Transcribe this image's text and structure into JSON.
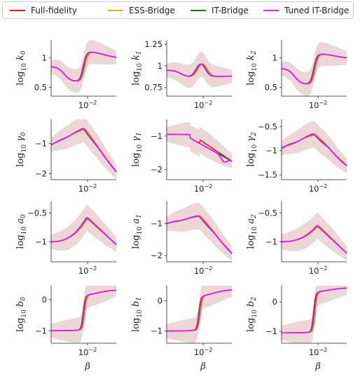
{
  "legend": [
    {
      "name": "Full-fidelity",
      "color": "#e8141c"
    },
    {
      "name": "ESS-Bridge",
      "color": "#f5a623"
    },
    {
      "name": "IT-Bridge",
      "color": "#1e6b1e"
    },
    {
      "name": "Tuned IT-Bridge",
      "color": "#e81ce0"
    }
  ],
  "band_color": "#c98a8e",
  "chart_data": [
    {
      "type": "line",
      "ylabel": "log10 k0",
      "xtick": "10^-2",
      "xlabel": "",
      "yticks": [
        0.5,
        1.0
      ],
      "ylim": [
        0.35,
        1.3
      ],
      "curve": "bump_rise",
      "params": {
        "start": 0.85,
        "dip": 0.6,
        "peak": 1.12,
        "end": 0.98
      }
    },
    {
      "type": "line",
      "ylabel": "log10 k1",
      "xtick": "10^-2",
      "xlabel": "",
      "yticks": [
        0.75,
        1.0,
        1.25
      ],
      "ylim": [
        0.65,
        1.3
      ],
      "curve": "k1",
      "params": {
        "start": 0.95,
        "dip": 0.87,
        "peak": 1.02,
        "end": 0.88
      }
    },
    {
      "type": "line",
      "ylabel": "log10 k2",
      "xtick": "10^-2",
      "xlabel": "",
      "yticks": [
        0.5,
        1.0
      ],
      "ylim": [
        0.35,
        1.3
      ],
      "curve": "bump_rise",
      "params": {
        "start": 0.82,
        "dip": 0.55,
        "peak": 1.08,
        "end": 0.98
      }
    },
    {
      "type": "line",
      "ylabel": "log10 γ0",
      "xtick": "10^-2",
      "xlabel": "",
      "yticks": [
        -2,
        -1
      ],
      "ylim": [
        -2.2,
        -0.2
      ],
      "curve": "peak_drop",
      "params": {
        "start": -1.05,
        "peak": -0.5,
        "end": -1.95
      }
    },
    {
      "type": "line",
      "ylabel": "log10 γ1",
      "xtick": "10^-2",
      "xlabel": "",
      "yticks": [
        -2,
        -1
      ],
      "ylim": [
        -2.3,
        -0.5
      ],
      "curve": "g1",
      "params": {
        "start": -0.95,
        "end": -1.75
      }
    },
    {
      "type": "line",
      "ylabel": "log10 γ2",
      "xtick": "10^-2",
      "xlabel": "",
      "yticks": [
        -1.5,
        -1.0,
        -0.5
      ],
      "ylim": [
        -1.6,
        -0.35
      ],
      "curve": "peak_drop",
      "params": {
        "start": -0.95,
        "peak": -0.65,
        "end": -1.32
      }
    },
    {
      "type": "line",
      "ylabel": "log10 a0",
      "xtick": "10^-2",
      "xlabel": "",
      "yticks": [
        -1.0,
        -0.5
      ],
      "ylim": [
        -1.35,
        -0.3
      ],
      "curve": "peak_drop2",
      "params": {
        "start": -1.0,
        "peak": -0.58,
        "end": -1.05
      }
    },
    {
      "type": "line",
      "ylabel": "log10 a1",
      "xtick": "10^-2",
      "xlabel": "",
      "yticks": [
        -2,
        -1
      ],
      "ylim": [
        -2.2,
        -0.3
      ],
      "curve": "peak_drop",
      "params": {
        "start": -1.0,
        "peak": -0.75,
        "end": -1.95
      }
    },
    {
      "type": "line",
      "ylabel": "log10 a2",
      "xtick": "10^-2",
      "xlabel": "",
      "yticks": [
        -1.0,
        -0.5
      ],
      "ylim": [
        -1.35,
        -0.3
      ],
      "curve": "peak_drop2",
      "params": {
        "start": -1.0,
        "peak": -0.72,
        "end": -1.2
      }
    },
    {
      "type": "line",
      "ylabel": "log10 b0",
      "xtick": "10^-2",
      "xlabel": "β",
      "yticks": [
        -1,
        0
      ],
      "ylim": [
        -1.4,
        0.45
      ],
      "curve": "step",
      "params": {
        "start": -1.0,
        "mid": 0.1,
        "end": 0.32
      }
    },
    {
      "type": "line",
      "ylabel": "log10 b1",
      "xtick": "10^-2",
      "xlabel": "β",
      "yticks": [
        -1,
        0
      ],
      "ylim": [
        -1.4,
        0.5
      ],
      "curve": "step",
      "params": {
        "start": -1.0,
        "mid": 0.1,
        "end": 0.38
      }
    },
    {
      "type": "line",
      "ylabel": "log10 b2",
      "xtick": "10^-2",
      "xlabel": "β",
      "yticks": [
        -1,
        0
      ],
      "ylim": [
        -1.4,
        0.55
      ],
      "curve": "step",
      "params": {
        "start": -1.05,
        "mid": 0.3,
        "end": 0.48
      }
    }
  ]
}
